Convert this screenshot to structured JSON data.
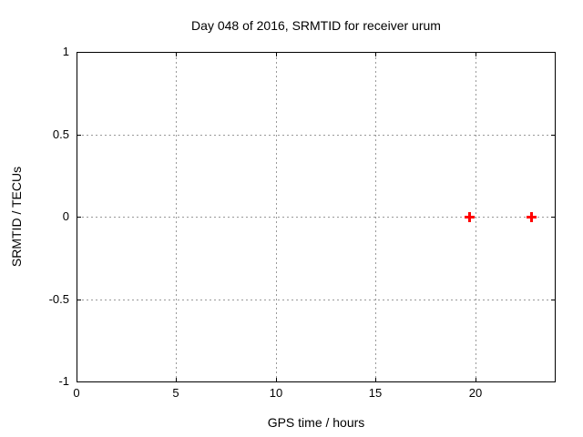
{
  "title": "Day 048 of 2016, SRMTID for receiver urum",
  "colors": {
    "background": "#ffffff",
    "plot_border": "#000000",
    "grid": "#999999",
    "marker": "#ff0000",
    "text": "#000000"
  },
  "chart_data": {
    "type": "scatter",
    "title": "Day 048 of 2016, SRMTID for receiver urum",
    "xlabel": "GPS time / hours",
    "ylabel": "SRMTID / TECUs",
    "xlim": [
      0,
      24
    ],
    "ylim": [
      -1,
      1
    ],
    "xticks": {
      "values": [
        0,
        5,
        10,
        15,
        20
      ],
      "labels": [
        "0",
        "5",
        "10",
        "15",
        "20"
      ]
    },
    "yticks": {
      "values": [
        1,
        0.5,
        0,
        -0.5,
        -1
      ],
      "labels": [
        "1",
        "0.5",
        "0",
        "-0.5",
        "-1"
      ]
    },
    "grid": true,
    "grid_style": "dotted",
    "legend": false,
    "series": [
      {
        "name": "SRMTID",
        "marker": "plus",
        "color": "#ff0000",
        "points": [
          {
            "x": 19.7,
            "y": 0.0
          },
          {
            "x": 22.8,
            "y": 0.0
          }
        ]
      }
    ]
  }
}
